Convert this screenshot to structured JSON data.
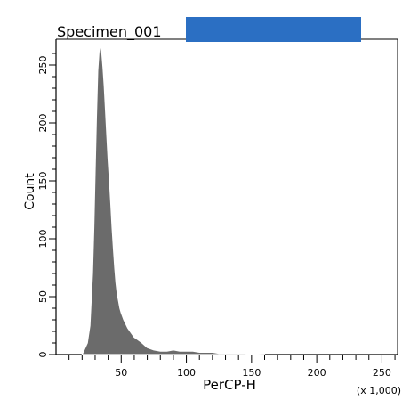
{
  "title": "Specimen_001",
  "colors": {
    "background": "#ffffff",
    "axis": "#000000",
    "fill": "#6b6b6b",
    "outline": "#ffffff",
    "redaction": "#2b6fc3"
  },
  "chart_data": {
    "type": "area",
    "title": "Specimen_001",
    "xlabel": "PerCP-H",
    "xlabel_multiplier": "(x 1,000)",
    "ylabel": "Count",
    "xlim": [
      0,
      262
    ],
    "ylim": [
      0,
      270
    ],
    "x_ticks": [
      50,
      100,
      150,
      200,
      250
    ],
    "y_ticks": [
      0,
      50,
      100,
      150,
      200,
      250
    ],
    "grid": false,
    "legend": "none",
    "series": [
      {
        "x": [
          20,
          22,
          24,
          26,
          28,
          29,
          30,
          31,
          32,
          33,
          34,
          35,
          36,
          37,
          38,
          39,
          40,
          41,
          42,
          43,
          44,
          45,
          46,
          47,
          48,
          49,
          50,
          52,
          55,
          60,
          65,
          70,
          75,
          80,
          85,
          90,
          95,
          100,
          105,
          110,
          115,
          120,
          125,
          130,
          135,
          140,
          145,
          150,
          155,
          160
        ],
        "values": [
          0,
          5,
          10,
          25,
          70,
          110,
          160,
          205,
          245,
          262,
          268,
          262,
          248,
          232,
          210,
          188,
          168,
          150,
          130,
          110,
          92,
          75,
          62,
          52,
          46,
          40,
          36,
          30,
          23,
          15,
          11,
          6,
          4,
          3,
          3,
          4,
          3,
          3,
          3,
          2,
          2,
          2,
          1,
          1,
          1,
          1,
          1,
          0.5,
          0.3,
          0
        ]
      }
    ]
  }
}
